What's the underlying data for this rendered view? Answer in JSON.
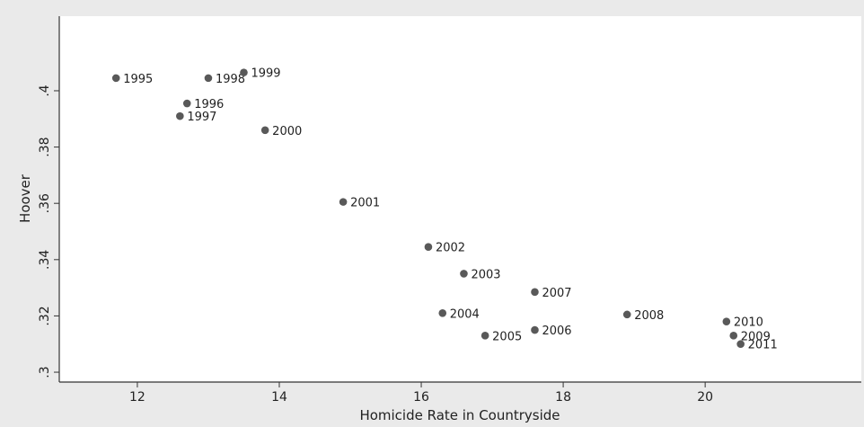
{
  "chart_data": {
    "type": "scatter",
    "title": "",
    "xlabel": "Homicide Rate in Countryside",
    "ylabel": "Hoover",
    "xlim": [
      10.9,
      22.2
    ],
    "ylim": [
      0.2965,
      0.4265
    ],
    "x_ticks": [
      12,
      14,
      16,
      18,
      20
    ],
    "x_tick_labels": [
      "12",
      "14",
      "16",
      "18",
      "20"
    ],
    "y_ticks": [
      0.3,
      0.32,
      0.34,
      0.36,
      0.38,
      0.4
    ],
    "y_tick_labels": [
      ".3",
      ".32",
      ".34",
      ".36",
      ".38",
      ".4"
    ],
    "grid": false,
    "legend": "none",
    "colors": {
      "background": "#ffffff",
      "plot_background": "#ffffff",
      "outer_background": "#eaeaea",
      "marker": "#595959",
      "axis": "#333333"
    },
    "points": [
      {
        "label": "1995",
        "x": 11.7,
        "y": 0.4045
      },
      {
        "label": "1996",
        "x": 12.7,
        "y": 0.3955
      },
      {
        "label": "1997",
        "x": 12.6,
        "y": 0.391
      },
      {
        "label": "1998",
        "x": 13.0,
        "y": 0.4045
      },
      {
        "label": "1999",
        "x": 13.5,
        "y": 0.4065
      },
      {
        "label": "2000",
        "x": 13.8,
        "y": 0.386
      },
      {
        "label": "2001",
        "x": 14.9,
        "y": 0.3605
      },
      {
        "label": "2002",
        "x": 16.1,
        "y": 0.3445
      },
      {
        "label": "2003",
        "x": 16.6,
        "y": 0.335
      },
      {
        "label": "2004",
        "x": 16.3,
        "y": 0.321
      },
      {
        "label": "2005",
        "x": 16.9,
        "y": 0.313
      },
      {
        "label": "2006",
        "x": 17.6,
        "y": 0.315
      },
      {
        "label": "2007",
        "x": 17.6,
        "y": 0.3285
      },
      {
        "label": "2008",
        "x": 18.9,
        "y": 0.3205
      },
      {
        "label": "2009",
        "x": 20.4,
        "y": 0.313
      },
      {
        "label": "2010",
        "x": 20.3,
        "y": 0.318
      },
      {
        "label": "2011",
        "x": 20.5,
        "y": 0.31
      }
    ]
  }
}
